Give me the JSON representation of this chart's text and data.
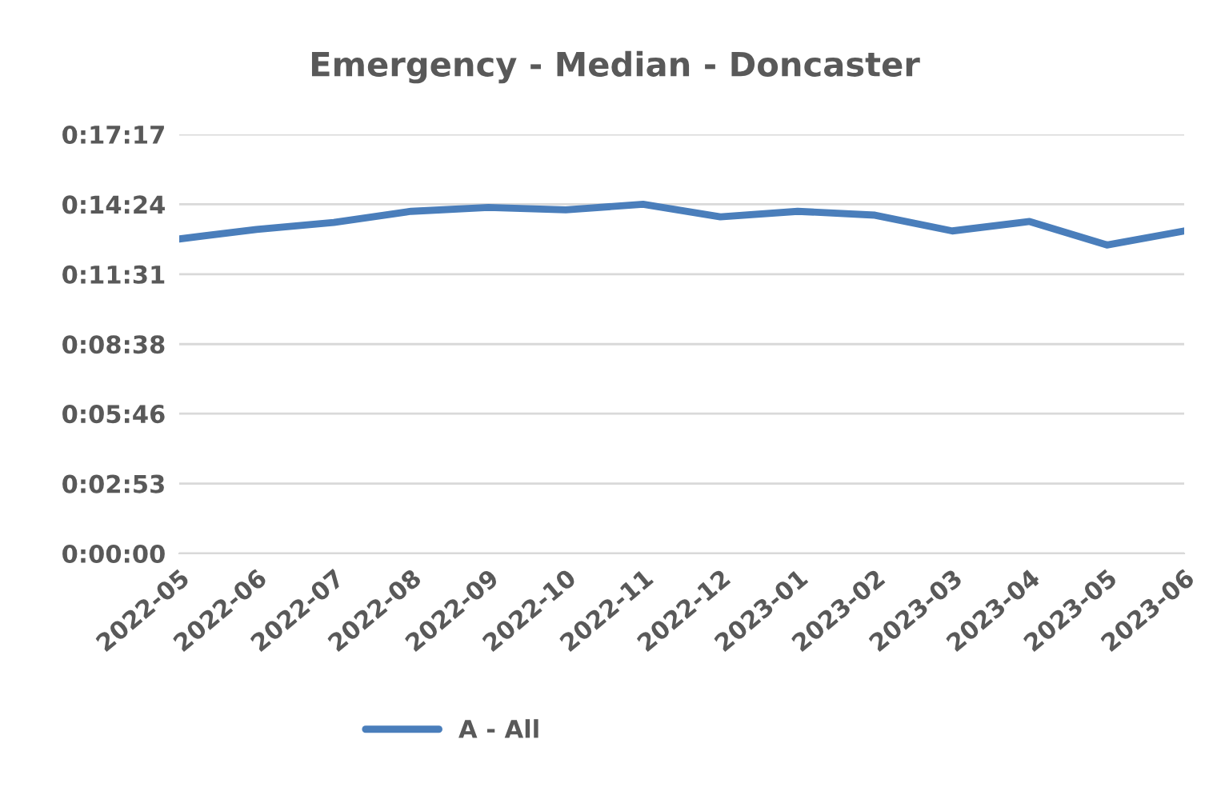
{
  "chart_data": {
    "type": "line",
    "title": "Emergency - Median - Doncaster",
    "categories": [
      "2022-05",
      "2022-06",
      "2022-07",
      "2022-08",
      "2022-09",
      "2022-10",
      "2022-11",
      "2022-12",
      "2023-01",
      "2023-02",
      "2023-03",
      "2023-04",
      "2023-05",
      "2023-06"
    ],
    "series": [
      {
        "name": "A - All",
        "color": "#4a7ebb",
        "values": [
          12.97,
          13.36,
          13.65,
          14.11,
          14.27,
          14.17,
          14.4,
          13.88,
          14.11,
          13.95,
          13.3,
          13.69,
          12.72,
          13.3
        ]
      }
    ],
    "ylim": [
      0,
      17.283
    ],
    "yticks": [
      {
        "value": 0,
        "label": "0:00:00"
      },
      {
        "value": 2.883,
        "label": "0:02:53"
      },
      {
        "value": 5.767,
        "label": "0:05:46"
      },
      {
        "value": 8.633,
        "label": "0:08:38"
      },
      {
        "value": 11.517,
        "label": "0:11:31"
      },
      {
        "value": 14.4,
        "label": "0:14:24"
      },
      {
        "value": 17.283,
        "label": "0:17:17"
      }
    ],
    "grid": "y",
    "legend": "bottom",
    "marker": "none",
    "line_style": "solid"
  }
}
